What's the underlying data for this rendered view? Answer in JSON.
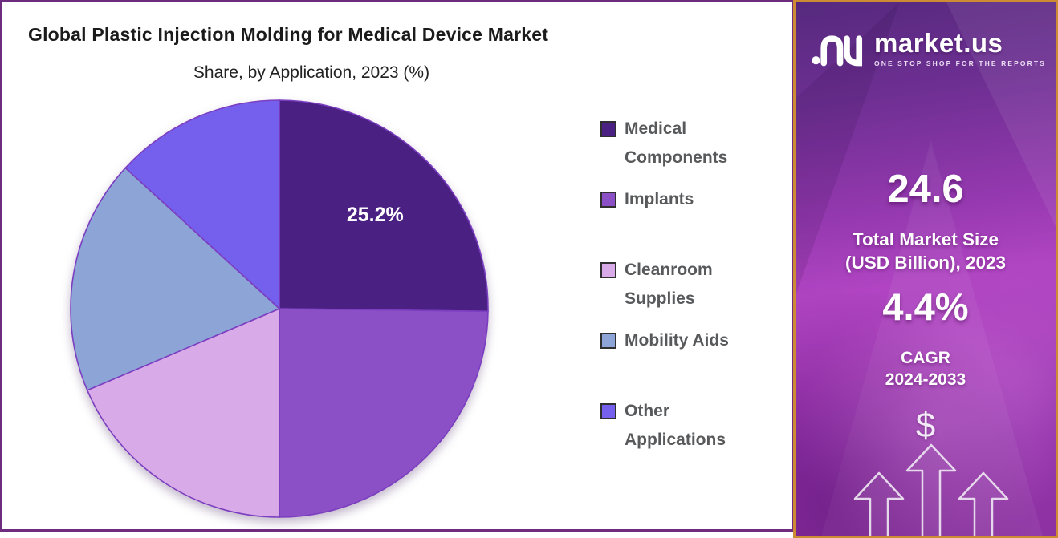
{
  "header": {
    "title": "Global Plastic Injection Molding for Medical Device Market",
    "subtitle": "Share, by Application, 2023 (%)"
  },
  "chart_data": {
    "type": "pie",
    "title": "Global Plastic Injection Molding for Medical Device Market",
    "subtitle": "Share, by Application, 2023 (%)",
    "unit": "%",
    "direction": "clockwise",
    "start_angle_deg": 0,
    "categories": [
      "Medical Components",
      "Implants",
      "Cleanroom Supplies",
      "Mobility Aids",
      "Other Applications"
    ],
    "values": [
      25.2,
      24.8,
      18.6,
      18.2,
      13.2
    ],
    "colors": [
      "#4A2083",
      "#8C50C6",
      "#D9AAE8",
      "#8CA4D6",
      "#7560EE"
    ],
    "slice_border_color": "#7B3EC0",
    "data_labels": [
      {
        "slice": 0,
        "text": "25.2%"
      }
    ],
    "legend_position": "right"
  },
  "sidebar": {
    "brand": "market.us",
    "tagline": "ONE STOP SHOP FOR THE REPORTS",
    "stat_primary_value": "24.6",
    "stat_primary_label_line1": "Total Market Size",
    "stat_primary_label_line2": "(USD Billion), 2023",
    "stat_secondary_value": "4.4%",
    "stat_secondary_label_line1": "CAGR",
    "stat_secondary_label_line2": "2024-2033",
    "dollar_symbol": "$",
    "accent_border_color": "#CD8C33"
  }
}
